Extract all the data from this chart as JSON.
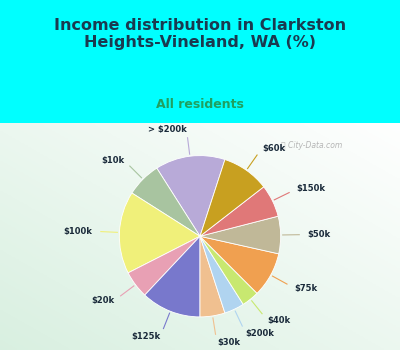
{
  "title": "Income distribution in Clarkston\nHeights-Vineland, WA (%)",
  "subtitle": "All residents",
  "bg_cyan": "#00FFFF",
  "bg_chart": "#d8f0e0",
  "labels": [
    "> $200k",
    "$10k",
    "$100k",
    "$20k",
    "$125k",
    "$30k",
    "$200k",
    "$40k",
    "$75k",
    "$50k",
    "$150k",
    "$60k"
  ],
  "sizes": [
    14.0,
    7.0,
    16.5,
    5.5,
    12.0,
    5.0,
    4.0,
    3.5,
    9.0,
    7.5,
    6.5,
    9.5
  ],
  "colors": [
    "#b8aad8",
    "#a8c4a0",
    "#f0f07a",
    "#e8a0b4",
    "#7878cc",
    "#f0c090",
    "#b0d4f0",
    "#c8e870",
    "#f0a050",
    "#c0b898",
    "#e07878",
    "#c8a020"
  ],
  "startangle": 72,
  "label_r": 1.28,
  "line_r": 1.07
}
